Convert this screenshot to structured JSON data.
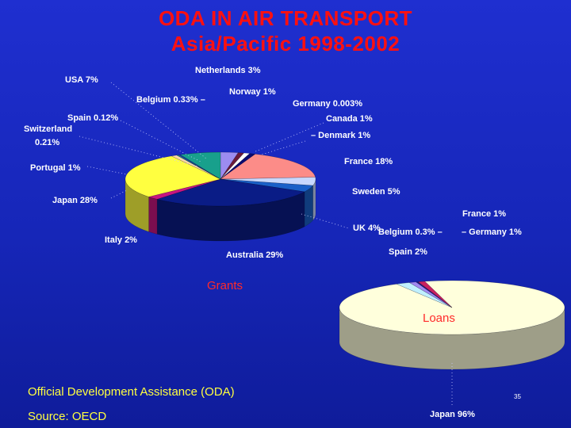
{
  "title_line1": "ODA IN AIR TRANSPORT",
  "title_line2": "Asia/Pacific 1998-2002",
  "footer": "Official Development Assistance (ODA)",
  "source": "Source: OECD",
  "slide_number": "35",
  "chart_data": [
    {
      "type": "pie",
      "title": "Grants",
      "unit": "%",
      "slices": [
        {
          "label": "Netherlands 3%",
          "name": "Netherlands",
          "value": 3,
          "color": "#9c8cf0"
        },
        {
          "label": "Norway 1%",
          "name": "Norway",
          "value": 1,
          "color": "#6a1a3a"
        },
        {
          "label": "Germany 0.003%",
          "name": "Germany",
          "value": 0.003,
          "color": "#ffffe0"
        },
        {
          "label": "Canada 1%",
          "name": "Canada",
          "value": 1,
          "color": "#ffffff"
        },
        {
          "label": "Denmark 1%",
          "name": "Denmark",
          "value": 1,
          "color": "#0a0a70"
        },
        {
          "label": "France 18%",
          "name": "France",
          "value": 18,
          "color": "#fc8c88"
        },
        {
          "label": "Sweden 5%",
          "name": "Sweden",
          "value": 5,
          "color": "#c8d8ff"
        },
        {
          "label": "UK 4%",
          "name": "UK",
          "value": 4,
          "color": "#1a60c8"
        },
        {
          "label": "Australia 29%",
          "name": "Australia",
          "value": 29,
          "color": "#0a1c86"
        },
        {
          "label": "Italy 2%",
          "name": "Italy",
          "value": 2,
          "color": "#c81680"
        },
        {
          "label": "Japan 28%",
          "name": "Japan",
          "value": 28,
          "color": "#ffff40"
        },
        {
          "label": "Portugal 1%",
          "name": "Portugal",
          "value": 1,
          "color": "#ffd8a8"
        },
        {
          "label": "Switzerland 0.21%",
          "name": "Switzerland",
          "value": 0.21,
          "color": "#00a8a8"
        },
        {
          "label": "Spain 0.12%",
          "name": "Spain",
          "value": 0.12,
          "color": "#a8e8ff"
        },
        {
          "label": "Belgium 0.33%",
          "name": "Belgium",
          "value": 0.33,
          "color": "#1a3ab0"
        },
        {
          "label": "USA 7%",
          "name": "USA",
          "value": 7,
          "color": "#18a08c"
        }
      ]
    },
    {
      "type": "pie",
      "title": "Loans",
      "unit": "%",
      "slices": [
        {
          "label": "Japan 96%",
          "name": "Japan",
          "value": 96,
          "color": "#ffffdc"
        },
        {
          "label": "Spain 2%",
          "name": "Spain",
          "value": 2,
          "color": "#c0f0ff"
        },
        {
          "label": "France 1%",
          "name": "France",
          "value": 1,
          "color": "#a088f0"
        },
        {
          "label": "Belgium 0.3%",
          "name": "Belgium",
          "value": 0.3,
          "color": "#1a1a80"
        },
        {
          "label": "Germany 1%",
          "name": "Germany",
          "value": 1,
          "color": "#c82060"
        }
      ]
    }
  ]
}
